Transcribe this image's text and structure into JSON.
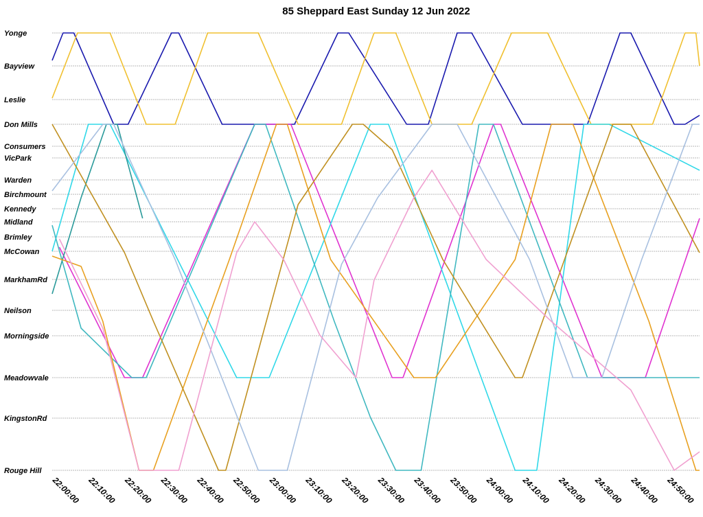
{
  "chart_data": {
    "type": "line",
    "title": "85 Sheppard East Sunday 12 Jun 2022",
    "xlabel": "",
    "ylabel": "",
    "stops": [
      {
        "name": "Yonge",
        "pos": 0
      },
      {
        "name": "Bayview",
        "pos": 48
      },
      {
        "name": "Leslie",
        "pos": 97
      },
      {
        "name": "Don Mills",
        "pos": 133
      },
      {
        "name": "Consumers",
        "pos": 165
      },
      {
        "name": "VicPark",
        "pos": 182
      },
      {
        "name": "Warden",
        "pos": 214
      },
      {
        "name": "Birchmount",
        "pos": 235
      },
      {
        "name": "Kennedy",
        "pos": 256
      },
      {
        "name": "Midland",
        "pos": 275
      },
      {
        "name": "Brimley",
        "pos": 297
      },
      {
        "name": "McCowan",
        "pos": 318
      },
      {
        "name": "MarkhamRd",
        "pos": 359
      },
      {
        "name": "Neilson",
        "pos": 404
      },
      {
        "name": "Morningside",
        "pos": 441
      },
      {
        "name": "Meadowvale",
        "pos": 502
      },
      {
        "name": "KingstonRd",
        "pos": 561
      },
      {
        "name": "Rouge Hill",
        "pos": 637
      }
    ],
    "x_ticks": [
      "22:00:00",
      "22:10:00",
      "22:20:00",
      "22:30:00",
      "22:40:00",
      "22:50:00",
      "23:00:00",
      "23:10:00",
      "23:20:00",
      "23:30:00",
      "23:40:00",
      "23:50:00",
      "24:00:00",
      "24:10:00",
      "24:20:00",
      "24:30:00",
      "24:40:00",
      "24:50:00"
    ],
    "x_range_minutes": [
      0,
      179
    ],
    "grid": true,
    "legend": "none",
    "series": [
      {
        "color": "#1a1aae",
        "points": [
          [
            0,
            40
          ],
          [
            3,
            0
          ],
          [
            6,
            0
          ],
          [
            17,
            133
          ],
          [
            21,
            133
          ],
          [
            33,
            0
          ],
          [
            35,
            0
          ],
          [
            47,
            133
          ],
          [
            67,
            133
          ],
          [
            79,
            0
          ],
          [
            82,
            0
          ],
          [
            98,
            133
          ],
          [
            104,
            133
          ],
          [
            112,
            0
          ],
          [
            116,
            0
          ],
          [
            130,
            133
          ],
          [
            148,
            133
          ],
          [
            157,
            0
          ],
          [
            160,
            0
          ],
          [
            172,
            133
          ],
          [
            175,
            133
          ],
          [
            179,
            120
          ]
        ]
      },
      {
        "color": "#f0c030",
        "points": [
          [
            0,
            95
          ],
          [
            7,
            0
          ],
          [
            16,
            0
          ],
          [
            26,
            133
          ],
          [
            34,
            133
          ],
          [
            43,
            0
          ],
          [
            57,
            0
          ],
          [
            68,
            133
          ],
          [
            80,
            133
          ],
          [
            89,
            0
          ],
          [
            95,
            0
          ],
          [
            105,
            133
          ],
          [
            116,
            133
          ],
          [
            127,
            0
          ],
          [
            137,
            0
          ],
          [
            149,
            133
          ],
          [
            166,
            133
          ],
          [
            175,
            0
          ],
          [
            178,
            0
          ],
          [
            179,
            48
          ]
        ]
      },
      {
        "color": "#e033d0",
        "points": [
          [
            2,
            312
          ],
          [
            20,
            502
          ],
          [
            25,
            502
          ],
          [
            56,
            133
          ],
          [
            66,
            133
          ],
          [
            94,
            502
          ],
          [
            97,
            502
          ],
          [
            122,
            133
          ],
          [
            124,
            133
          ],
          [
            152,
            502
          ],
          [
            164,
            502
          ],
          [
            179,
            270
          ]
        ]
      },
      {
        "color": "#30d8e8",
        "points": [
          [
            0,
            318
          ],
          [
            10,
            133
          ],
          [
            16,
            133
          ],
          [
            51,
            502
          ],
          [
            60,
            502
          ],
          [
            88,
            133
          ],
          [
            93,
            133
          ],
          [
            128,
            637
          ],
          [
            134,
            637
          ],
          [
            147,
            133
          ],
          [
            154,
            133
          ],
          [
            179,
            200
          ]
        ]
      },
      {
        "color": "#40b8c0",
        "points": [
          [
            0,
            280
          ],
          [
            8,
            430
          ],
          [
            22,
            502
          ],
          [
            26,
            502
          ],
          [
            56,
            133
          ],
          [
            59,
            133
          ],
          [
            78,
            420
          ],
          [
            88,
            560
          ],
          [
            95,
            637
          ],
          [
            102,
            637
          ],
          [
            118,
            133
          ],
          [
            122,
            133
          ],
          [
            148,
            502
          ],
          [
            150,
            502
          ],
          [
            179,
            502
          ]
        ]
      },
      {
        "color": "#2a9a9a",
        "points": [
          [
            0,
            380
          ],
          [
            8,
            240
          ],
          [
            15,
            133
          ],
          [
            18,
            133
          ],
          [
            25,
            270
          ]
        ]
      },
      {
        "color": "#e8a020",
        "points": [
          [
            0,
            325
          ],
          [
            8,
            340
          ],
          [
            14,
            420
          ],
          [
            24,
            637
          ],
          [
            28,
            637
          ],
          [
            49,
            330
          ],
          [
            62,
            133
          ],
          [
            65,
            133
          ],
          [
            77,
            330
          ],
          [
            100,
            502
          ],
          [
            106,
            502
          ],
          [
            128,
            330
          ],
          [
            138,
            133
          ],
          [
            144,
            133
          ],
          [
            165,
            420
          ],
          [
            178,
            637
          ],
          [
            179,
            637
          ]
        ]
      },
      {
        "color": "#c09020",
        "points": [
          [
            0,
            133
          ],
          [
            20,
            320
          ],
          [
            28,
            420
          ],
          [
            46,
            637
          ],
          [
            48,
            637
          ],
          [
            68,
            250
          ],
          [
            83,
            133
          ],
          [
            86,
            133
          ],
          [
            94,
            170
          ],
          [
            108,
            330
          ],
          [
            128,
            502
          ],
          [
            130,
            502
          ],
          [
            155,
            133
          ],
          [
            160,
            133
          ],
          [
            179,
            320
          ]
        ]
      },
      {
        "color": "#a8c0e0",
        "points": [
          [
            0,
            230
          ],
          [
            14,
            133
          ],
          [
            17,
            133
          ],
          [
            34,
            330
          ],
          [
            57,
            637
          ],
          [
            65,
            637
          ],
          [
            80,
            337
          ],
          [
            90,
            240
          ],
          [
            105,
            133
          ],
          [
            112,
            133
          ],
          [
            132,
            330
          ],
          [
            144,
            502
          ],
          [
            152,
            502
          ],
          [
            163,
            330
          ],
          [
            177,
            133
          ],
          [
            179,
            133
          ]
        ]
      },
      {
        "color": "#f0a0d0",
        "points": [
          [
            2,
            300
          ],
          [
            14,
            430
          ],
          [
            24,
            637
          ],
          [
            35,
            637
          ],
          [
            51,
            320
          ],
          [
            56,
            275
          ],
          [
            64,
            330
          ],
          [
            74,
            440
          ],
          [
            84,
            502
          ],
          [
            89,
            360
          ],
          [
            100,
            240
          ],
          [
            105,
            200
          ],
          [
            120,
            330
          ],
          [
            138,
            420
          ],
          [
            160,
            520
          ],
          [
            172,
            637
          ],
          [
            179,
            610
          ]
        ]
      }
    ]
  }
}
